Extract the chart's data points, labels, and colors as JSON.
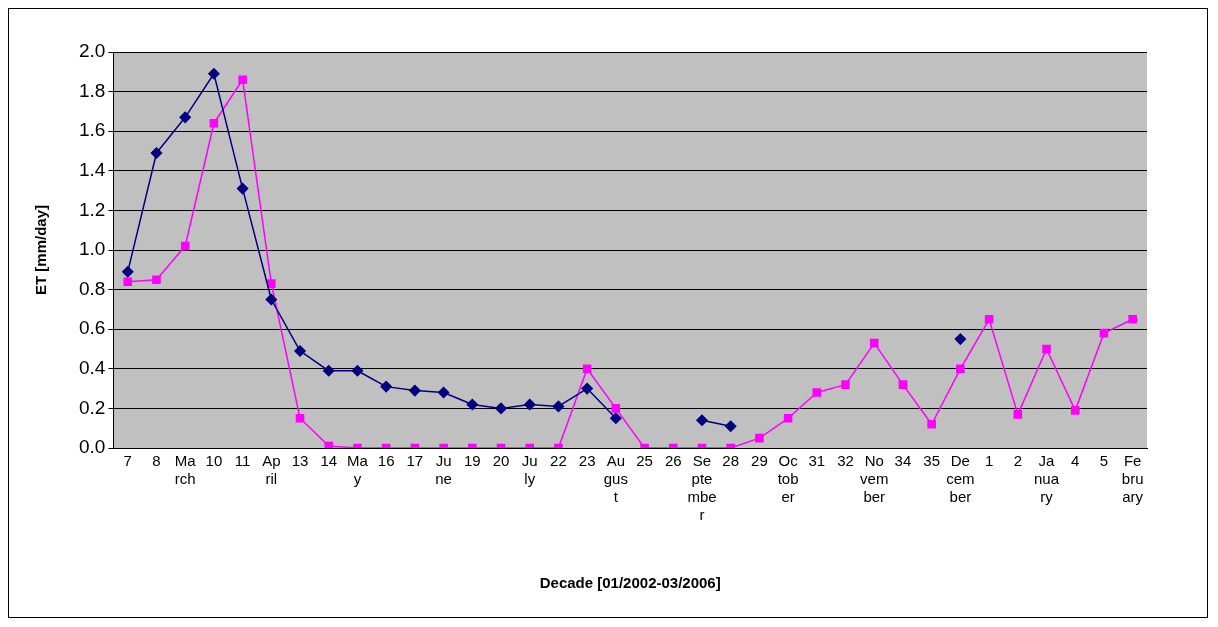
{
  "chart_data": {
    "type": "line",
    "xlabel": "Decade [01/2002-03/2006]",
    "ylabel": "ET [mm/day]",
    "categories": [
      "7",
      "8",
      "March",
      "10",
      "11",
      "April",
      "13",
      "14",
      "May",
      "16",
      "17",
      "June",
      "19",
      "20",
      "July",
      "22",
      "23",
      "August",
      "25",
      "26",
      "September",
      "28",
      "29",
      "October",
      "31",
      "32",
      "November",
      "34",
      "35",
      "December",
      "1",
      "2",
      "January",
      "4",
      "5",
      "February"
    ],
    "series": [
      {
        "color": "#000080",
        "marker": "diamond",
        "values": [
          0.89,
          1.49,
          1.67,
          1.89,
          1.31,
          0.75,
          0.49,
          0.39,
          0.39,
          0.31,
          0.29,
          0.28,
          0.22,
          0.2,
          0.22,
          0.21,
          0.3,
          0.15,
          null,
          null,
          0.14,
          0.11,
          null,
          null,
          null,
          null,
          null,
          null,
          null,
          0.55,
          null,
          null,
          null,
          null,
          null,
          null
        ]
      },
      {
        "color": "#ff00ff",
        "marker": "square",
        "values": [
          0.84,
          0.85,
          1.02,
          1.64,
          1.86,
          0.83,
          0.15,
          0.01,
          0,
          0,
          0,
          0,
          0,
          0,
          0,
          0,
          0.4,
          0.2,
          0,
          0,
          0,
          0,
          0.05,
          0.15,
          0.28,
          0.32,
          0.53,
          0.32,
          0.12,
          0.4,
          0.65,
          0.17,
          0.5,
          0.19,
          0.58,
          0.65
        ]
      }
    ],
    "ylim": [
      0,
      2
    ],
    "yticks": [
      {
        "value": 0,
        "label": "0.0"
      },
      {
        "value": 0.2,
        "label": "0.2"
      },
      {
        "value": 0.4,
        "label": "0.4"
      },
      {
        "value": 0.6,
        "label": "0.6"
      },
      {
        "value": 0.8,
        "label": "0.8"
      },
      {
        "value": 1,
        "label": "1.0"
      },
      {
        "value": 1.2,
        "label": "1.2"
      },
      {
        "value": 1.4,
        "label": "1.4"
      },
      {
        "value": 1.6,
        "label": "1.6"
      },
      {
        "value": 1.8,
        "label": "1.8"
      },
      {
        "value": 2,
        "label": "2.0"
      }
    ],
    "grid": "y",
    "legend": false,
    "line_style": "solid"
  }
}
